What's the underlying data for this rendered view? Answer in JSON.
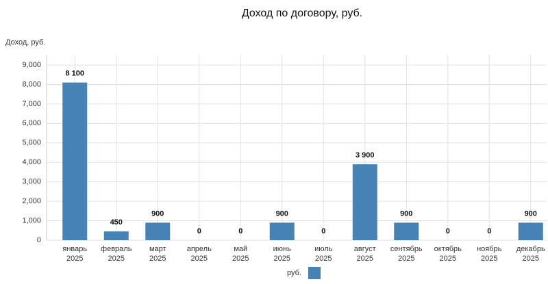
{
  "chart_data": {
    "type": "bar",
    "title": "Доход по договору, руб.",
    "y_label": "Доход, руб.",
    "categories": [
      [
        "январь",
        "2025"
      ],
      [
        "февраль",
        "2025"
      ],
      [
        "март",
        "2025"
      ],
      [
        "апрель",
        "2025"
      ],
      [
        "май",
        "2025"
      ],
      [
        "июнь",
        "2025"
      ],
      [
        "июль",
        "2025"
      ],
      [
        "август",
        "2025"
      ],
      [
        "сентябрь",
        "2025"
      ],
      [
        "октябрь",
        "2025"
      ],
      [
        "ноябрь",
        "2025"
      ],
      [
        "декабрь",
        "2025"
      ]
    ],
    "series": [
      {
        "name": "руб.",
        "color": "#4682b4",
        "values": [
          8100,
          450,
          900,
          0,
          0,
          900,
          0,
          3900,
          900,
          0,
          0,
          900
        ],
        "value_labels": [
          "8 100",
          "450",
          "900",
          "0",
          "0",
          "900",
          "0",
          "3 900",
          "900",
          "0",
          "0",
          "900"
        ]
      }
    ],
    "ylim": [
      0,
      9000
    ],
    "yticks": [
      0,
      {
        "value": 1000,
        "label": "1,000"
      },
      {
        "value": 2000,
        "label": "2,000"
      },
      {
        "value": 3000,
        "label": "3,000"
      },
      {
        "value": 4000,
        "label": "4,000"
      },
      {
        "value": 5000,
        "label": "5,000"
      },
      {
        "value": 6000,
        "label": "6,000"
      },
      {
        "value": 7000,
        "label": "7,000"
      },
      {
        "value": 8000,
        "label": "8,000"
      },
      {
        "value": 9000,
        "label": "9,000"
      }
    ],
    "grid": true,
    "legend": "bottom"
  }
}
